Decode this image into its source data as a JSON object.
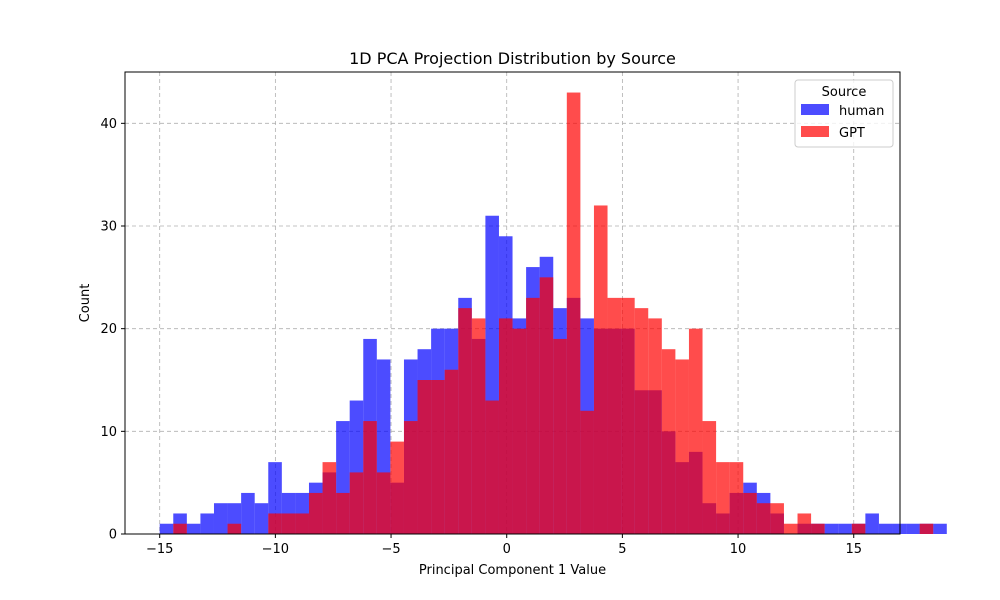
{
  "chart_data": {
    "type": "histogram",
    "title": "1D PCA Projection Distribution by Source",
    "xlabel": "Principal Component 1 Value",
    "ylabel": "Count",
    "xlim": [
      -16.5,
      17.0
    ],
    "ylim": [
      0,
      45
    ],
    "x_ticks": [
      -15,
      -10,
      -5,
      0,
      5,
      10,
      15
    ],
    "x_tick_labels": [
      "−15",
      "−10",
      "−5",
      "0",
      "5",
      "10",
      "15"
    ],
    "y_ticks": [
      0,
      10,
      20,
      30,
      40
    ],
    "y_tick_labels": [
      "0",
      "10",
      "20",
      "30",
      "40"
    ],
    "grid": true,
    "legend": {
      "title": "Source",
      "position": "top-right"
    },
    "bin_start": -15.0,
    "bin_width": 0.5866,
    "series": [
      {
        "name": "human",
        "color": "#0000ff",
        "opacity": 0.7,
        "values": [
          1,
          2,
          1,
          2,
          3,
          3,
          4,
          3,
          7,
          4,
          4,
          5,
          6,
          11,
          13,
          19,
          17,
          5,
          17,
          18,
          20,
          20,
          23,
          19,
          31,
          29,
          21,
          26,
          27,
          22,
          23,
          21,
          20,
          20,
          20,
          14,
          14,
          10,
          7,
          8,
          3,
          2,
          4,
          5,
          4,
          2,
          0,
          1,
          1,
          1,
          1,
          1,
          2,
          1,
          1,
          1,
          1,
          1,
          0,
          0,
          0,
          0,
          0,
          0,
          0,
          0,
          0,
          0,
          0,
          0,
          0,
          0
        ]
      },
      {
        "name": "GPT",
        "color": "#ff0000",
        "opacity": 0.7,
        "values": [
          0,
          1,
          0,
          0,
          0,
          1,
          0,
          0,
          2,
          2,
          2,
          4,
          7,
          4,
          6,
          11,
          6,
          9,
          11,
          15,
          15,
          16,
          22,
          21,
          13,
          21,
          20,
          23,
          25,
          19,
          43,
          12,
          32,
          23,
          23,
          22,
          21,
          18,
          17,
          20,
          11,
          7,
          7,
          4,
          3,
          3,
          1,
          2,
          1,
          0,
          0,
          1,
          0,
          0,
          0,
          0,
          1,
          0,
          0,
          0,
          0,
          0,
          0,
          0,
          0,
          0,
          0,
          0,
          0,
          0,
          0,
          0
        ]
      }
    ]
  }
}
